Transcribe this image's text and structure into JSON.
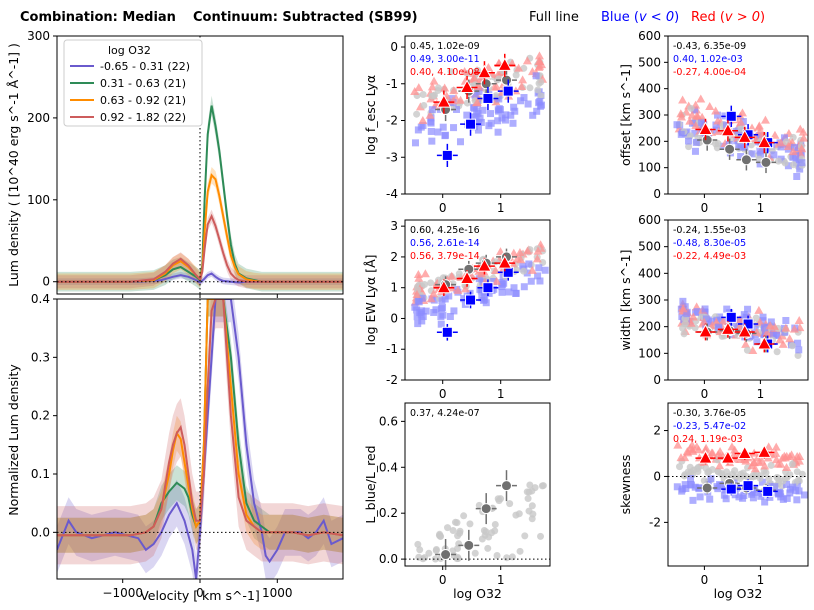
{
  "header": {
    "combination": "Combination: Median",
    "continuum": "Continuum: Subtracted (SB99)",
    "full_line": "Full line",
    "blue_prefix": "Blue (",
    "blue_cond": "v < 0",
    "blue_suffix": ")",
    "red_prefix": "Red (",
    "red_cond": "v > 0",
    "red_suffix": ")"
  },
  "colors": {
    "g1": "#6a5acd",
    "g2": "#2e8b57",
    "g3": "#ff8c00",
    "g4": "#cd5c5c",
    "blue": "#0000ff",
    "red": "#ff0000",
    "gray": "#808080",
    "light_gray": "#c8c8c8",
    "light_blue": "#8c8cff",
    "light_red": "#ff9090"
  },
  "chart_data": [
    {
      "id": "lum",
      "type": "line",
      "ylabel": "Lum density ( [10^40 erg s^-1 Å^-1] )",
      "ylim": [
        -15,
        300
      ],
      "yticks": [
        "0",
        "100",
        "200",
        "300"
      ],
      "xlim": [
        -1850,
        1850
      ],
      "legend": {
        "title": "log O32",
        "entries": [
          "-0.65 - 0.31 (22)",
          "0.31 - 0.63 (21)",
          "0.63 - 0.92 (21)",
          "0.92 - 1.82 (22)"
        ]
      },
      "series": [
        {
          "name": "-0.65 - 0.31 (22)",
          "color_key": "g1",
          "x": [
            -1850,
            -800,
            -500,
            -350,
            -250,
            -150,
            -50,
            0,
            50,
            100,
            150,
            200,
            250,
            300,
            400,
            500,
            600,
            800,
            1000,
            1850
          ],
          "y": [
            0,
            0,
            2,
            6,
            8,
            6,
            2,
            -1,
            3,
            8,
            10,
            6,
            3,
            1,
            0,
            -1,
            0,
            0,
            0,
            0
          ]
        },
        {
          "name": "0.31 - 0.63 (21)",
          "color_key": "g2",
          "x": [
            -1850,
            -900,
            -600,
            -450,
            -350,
            -250,
            -150,
            -50,
            0,
            30,
            60,
            100,
            150,
            200,
            250,
            300,
            350,
            400,
            450,
            500,
            600,
            700,
            800,
            1000,
            1850
          ],
          "y": [
            0,
            0,
            2,
            8,
            15,
            18,
            12,
            6,
            2,
            20,
            100,
            180,
            215,
            190,
            160,
            120,
            80,
            45,
            22,
            10,
            4,
            2,
            0,
            0,
            0
          ]
        },
        {
          "name": "0.63 - 0.92 (21)",
          "color_key": "g3",
          "x": [
            -1850,
            -900,
            -600,
            -450,
            -350,
            -250,
            -150,
            -50,
            0,
            30,
            60,
            100,
            150,
            200,
            250,
            300,
            350,
            400,
            450,
            500,
            600,
            700,
            800,
            1000,
            1850
          ],
          "y": [
            0,
            0,
            2,
            10,
            20,
            25,
            18,
            8,
            3,
            15,
            60,
            110,
            130,
            125,
            105,
            80,
            55,
            32,
            18,
            9,
            3,
            1,
            0,
            0,
            0
          ]
        },
        {
          "name": "0.92 - 1.82 (22)",
          "color_key": "g4",
          "x": [
            -1850,
            -900,
            -600,
            -450,
            -350,
            -250,
            -150,
            -50,
            0,
            30,
            60,
            100,
            150,
            200,
            250,
            300,
            350,
            400,
            450,
            500,
            600,
            800,
            1000,
            1850
          ],
          "y": [
            0,
            0,
            3,
            12,
            22,
            28,
            20,
            8,
            3,
            12,
            40,
            70,
            80,
            68,
            52,
            35,
            20,
            10,
            5,
            2,
            0,
            0,
            0,
            0
          ]
        }
      ]
    },
    {
      "id": "norm",
      "type": "line",
      "ylabel": "Normalized Lum density",
      "xlabel": "Velocity [ km s^-1]",
      "ylim": [
        -0.08,
        0.4
      ],
      "yticks": [
        "0.0",
        "0.1",
        "0.2",
        "0.3",
        "0.4"
      ],
      "xlim": [
        -1850,
        1850
      ],
      "xticks": [
        "-1000",
        "0",
        "1000"
      ],
      "series": [
        {
          "name": "-0.65 - 0.31 (22)",
          "color_key": "g1",
          "x": [
            -1850,
            -1700,
            -1600,
            -1400,
            -1100,
            -800,
            -700,
            -600,
            -500,
            -400,
            -300,
            -200,
            -100,
            -50,
            0,
            100,
            200,
            300,
            400,
            500,
            600,
            700,
            800,
            850,
            900,
            1000,
            1100,
            1200,
            1300,
            1400,
            1500,
            1600,
            1700,
            1850
          ],
          "y": [
            -0.03,
            0.02,
            0.0,
            -0.01,
            0.0,
            -0.01,
            -0.03,
            -0.02,
            0.0,
            0.03,
            0.05,
            0.02,
            -0.03,
            -0.08,
            0.0,
            0.2,
            0.4,
            0.4,
            0.4,
            0.3,
            0.15,
            0.05,
            0.0,
            -0.04,
            -0.05,
            -0.03,
            0.0,
            0.0,
            0.0,
            -0.01,
            0.0,
            0.02,
            -0.02,
            -0.01
          ]
        },
        {
          "name": "0.31 - 0.63 (21)",
          "color_key": "g2",
          "x": [
            -1850,
            -1400,
            -900,
            -700,
            -600,
            -500,
            -400,
            -300,
            -250,
            -200,
            -150,
            -100,
            -50,
            0,
            50,
            100,
            200,
            300,
            400,
            500,
            600,
            700,
            800,
            900,
            1000,
            1200,
            1400,
            1600,
            1850
          ],
          "y": [
            -0.005,
            -0.005,
            -0.005,
            0.0,
            0.01,
            0.05,
            0.07,
            0.085,
            0.08,
            0.075,
            0.06,
            0.03,
            0.01,
            0.02,
            0.15,
            0.4,
            0.4,
            0.4,
            0.3,
            0.15,
            0.05,
            0.02,
            0.01,
            0.0,
            0.0,
            0.0,
            -0.005,
            0.0,
            -0.005
          ]
        },
        {
          "name": "0.63 - 0.92 (21)",
          "color_key": "g3",
          "x": [
            -1850,
            -1400,
            -900,
            -700,
            -600,
            -500,
            -400,
            -350,
            -300,
            -250,
            -200,
            -150,
            -100,
            -50,
            0,
            50,
            100,
            200,
            300,
            400,
            500,
            600,
            700,
            800,
            900,
            1000,
            1200,
            1400,
            1600,
            1850
          ],
          "y": [
            -0.005,
            -0.005,
            -0.005,
            0.0,
            0.01,
            0.04,
            0.1,
            0.14,
            0.17,
            0.16,
            0.12,
            0.08,
            0.04,
            0.01,
            0.02,
            0.15,
            0.4,
            0.4,
            0.4,
            0.25,
            0.1,
            0.03,
            0.01,
            0.0,
            0.0,
            0.0,
            0.0,
            -0.005,
            0.0,
            -0.005
          ]
        },
        {
          "name": "0.92 - 1.82 (22)",
          "color_key": "g4",
          "x": [
            -1850,
            -1400,
            -900,
            -700,
            -600,
            -500,
            -450,
            -400,
            -350,
            -300,
            -250,
            -200,
            -150,
            -100,
            -50,
            0,
            50,
            100,
            150,
            200,
            300,
            400,
            500,
            600,
            700,
            800,
            1000,
            1200,
            1400,
            1600,
            1850
          ],
          "y": [
            -0.005,
            -0.005,
            -0.005,
            0.0,
            0.01,
            0.04,
            0.08,
            0.12,
            0.15,
            0.17,
            0.18,
            0.15,
            0.1,
            0.05,
            0.02,
            0.02,
            0.1,
            0.25,
            0.38,
            0.4,
            0.4,
            0.2,
            0.06,
            0.02,
            0.01,
            0.0,
            0.0,
            0.0,
            -0.005,
            0.0,
            -0.005
          ]
        }
      ]
    },
    {
      "id": "fesc",
      "type": "scatter",
      "ylabel": "log f_esc Lyα",
      "ylim": [
        -4,
        0.3
      ],
      "yticks": [
        "-4",
        "-3",
        "-2",
        "-1",
        "0"
      ],
      "xlim": [
        -0.65,
        1.85
      ],
      "xticks": [
        "0",
        "1"
      ],
      "stats": [
        {
          "text": "0.45, 1.02e-09",
          "color_key": "k"
        },
        {
          "text": "0.49, 3.00e-11",
          "color_key": "blue"
        },
        {
          "text": "0.40, 4.10e-08",
          "color_key": "red"
        }
      ],
      "median_x": [
        0.05,
        0.45,
        0.75,
        1.1
      ],
      "median_full": [
        -1.7,
        -1.2,
        -1.0,
        -0.9
      ],
      "median_blue": [
        -2.95,
        -2.1,
        -1.4,
        -1.2
      ],
      "median_red": [
        -1.5,
        -1.1,
        -0.7,
        -0.5
      ],
      "cloud": {
        "center": -1.1,
        "slope": 0.4,
        "spread": 0.7,
        "blue_offset": -0.7,
        "red_offset": 0.1
      }
    },
    {
      "id": "offset",
      "type": "scatter",
      "ylabel": "offset [km s^-1]",
      "ylim": [
        0,
        600
      ],
      "yticks": [
        "0",
        "100",
        "200",
        "300",
        "400",
        "500",
        "600"
      ],
      "xlim": [
        -0.65,
        1.85
      ],
      "xticks": [
        "0",
        "1"
      ],
      "stats": [
        {
          "text": "-0.43, 6.35e-09",
          "color_key": "k"
        },
        {
          "text": "0.40, 1.02e-03",
          "color_key": "blue"
        },
        {
          "text": "-0.27, 4.00e-04",
          "color_key": "red"
        }
      ],
      "median_x": [
        0.05,
        0.45,
        0.75,
        1.1
      ],
      "median_full": [
        205,
        170,
        130,
        120
      ],
      "median_blue": [
        null,
        295,
        225,
        195
      ],
      "median_red": [
        245,
        240,
        215,
        195
      ],
      "cloud": {
        "center": 210,
        "slope": -60,
        "spread": 90,
        "blue_offset": 0,
        "red_offset": 40
      }
    },
    {
      "id": "ew",
      "type": "scatter",
      "ylabel": "log EW Lyα [Å]",
      "ylim": [
        -2,
        3.2
      ],
      "yticks": [
        "-2",
        "-1",
        "0",
        "1",
        "2",
        "3"
      ],
      "xlim": [
        -0.65,
        1.85
      ],
      "xticks": [
        "0",
        "1"
      ],
      "stats": [
        {
          "text": "0.60, 4.25e-16",
          "color_key": "k"
        },
        {
          "text": "0.56, 2.61e-14",
          "color_key": "blue"
        },
        {
          "text": "0.56, 3.79e-14",
          "color_key": "red"
        }
      ],
      "median_x": [
        0.05,
        0.45,
        0.75,
        1.1
      ],
      "median_full": [
        1.1,
        1.6,
        1.8,
        2.0
      ],
      "median_blue": [
        -0.45,
        0.6,
        1.0,
        1.5
      ],
      "median_red": [
        1.0,
        1.3,
        1.7,
        1.8
      ],
      "cloud": {
        "center": 1.4,
        "slope": 0.6,
        "spread": 0.6,
        "blue_offset": -0.6,
        "red_offset": 0.1
      }
    },
    {
      "id": "width",
      "type": "scatter",
      "ylabel": "width [km s^-1]",
      "ylim": [
        0,
        600
      ],
      "yticks": [
        "0",
        "100",
        "200",
        "300",
        "400",
        "500",
        "600"
      ],
      "xlim": [
        -0.65,
        1.85
      ],
      "xticks": [
        "0",
        "1"
      ],
      "stats": [
        {
          "text": "-0.24, 1.55e-03",
          "color_key": "k"
        },
        {
          "text": "-0.48, 8.30e-05",
          "color_key": "blue"
        },
        {
          "text": "-0.22, 4.49e-03",
          "color_key": "red"
        }
      ],
      "median_x": [
        0.05,
        0.45,
        0.75,
        1.1
      ],
      "median_full": [
        180,
        185,
        175,
        135
      ],
      "median_blue": [
        null,
        235,
        210,
        135
      ],
      "median_red": [
        180,
        190,
        180,
        135
      ],
      "cloud": {
        "center": 190,
        "slope": -40,
        "spread": 70,
        "blue_offset": 20,
        "red_offset": 10
      }
    },
    {
      "id": "ratio",
      "type": "scatter",
      "ylabel": "L_blue/L_red",
      "xlabel": "log O32",
      "ylim": [
        -0.03,
        0.68
      ],
      "yticks": [
        "0.0",
        "0.2",
        "0.4",
        "0.6"
      ],
      "xlim": [
        -0.65,
        1.85
      ],
      "xticks": [
        "0",
        "1"
      ],
      "stats": [
        {
          "text": "0.37, 4.24e-07",
          "color_key": "k"
        }
      ],
      "median_x": [
        0.05,
        0.45,
        0.75,
        1.1
      ],
      "median_full": [
        0.02,
        0.06,
        0.22,
        0.32
      ],
      "cloud": {
        "center": 0.12,
        "slope": 0.12,
        "spread": 0.15,
        "blue_offset": 0,
        "red_offset": 0
      }
    },
    {
      "id": "skew",
      "type": "scatter",
      "ylabel": "skewness",
      "xlabel": "log O32",
      "ylim": [
        -3.9,
        3.2
      ],
      "yticks": [
        "-2",
        "0",
        "2"
      ],
      "xlim": [
        -0.65,
        1.85
      ],
      "xticks": [
        "0",
        "1"
      ],
      "stats": [
        {
          "text": "-0.30, 3.76e-05",
          "color_key": "k"
        },
        {
          "text": "-0.23, 5.47e-02",
          "color_key": "blue"
        },
        {
          "text": "0.24, 1.19e-03",
          "color_key": "red"
        }
      ],
      "median_x": [
        0.05,
        0.45,
        0.75,
        1.1
      ],
      "median_full": [
        -0.5,
        -0.3,
        -0.5,
        -0.6
      ],
      "median_blue": [
        null,
        -0.55,
        -0.4,
        -0.65
      ],
      "median_red": [
        0.8,
        0.8,
        1.0,
        1.05
      ],
      "cloud": {
        "center": 0.1,
        "slope": -0.1,
        "spread": 0.6,
        "blue_offset": -0.7,
        "red_offset": 0.8
      }
    }
  ]
}
